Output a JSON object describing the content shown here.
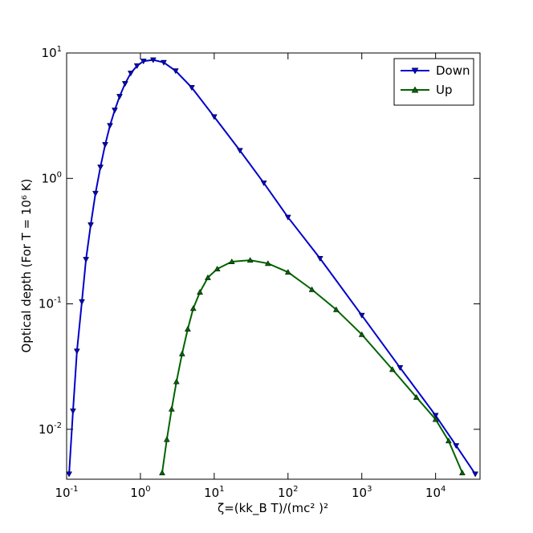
{
  "chart_data": {
    "type": "line",
    "x_label": "ζ=(kk_B T)/(mc² )²",
    "y_label": "Optical depth (For T = 10⁶ K)",
    "xscale": "log",
    "yscale": "log",
    "xlim": [
      0.1,
      40000
    ],
    "ylim": [
      0.004,
      10
    ],
    "xticks": [
      {
        "value": 0.1,
        "label": "10",
        "exponent": "-1"
      },
      {
        "value": 1,
        "label": "10",
        "exponent": "0"
      },
      {
        "value": 10,
        "label": "10",
        "exponent": "1"
      },
      {
        "value": 100,
        "label": "10",
        "exponent": "2"
      },
      {
        "value": 1000,
        "label": "10",
        "exponent": "3"
      },
      {
        "value": 10000,
        "label": "10",
        "exponent": "4"
      }
    ],
    "yticks": [
      {
        "value": 0.01,
        "label": "10",
        "exponent": "-2"
      },
      {
        "value": 0.1,
        "label": "10",
        "exponent": "-1"
      },
      {
        "value": 1,
        "label": "10",
        "exponent": "0"
      },
      {
        "value": 10,
        "label": "10",
        "exponent": "1"
      }
    ],
    "legend": "upper right",
    "series": [
      {
        "name": "Down",
        "color": "#0000cc",
        "marker": "v",
        "x": [
          0.108,
          0.122,
          0.138,
          0.161,
          0.183,
          0.212,
          0.246,
          0.287,
          0.333,
          0.387,
          0.449,
          0.522,
          0.62,
          0.74,
          0.9,
          1.1,
          1.49,
          2.07,
          3.0,
          4.96,
          10,
          22.3,
          47,
          100,
          272,
          1000,
          3300,
          10000,
          19000,
          34500
        ],
        "values": [
          0.0044,
          0.014,
          0.042,
          0.104,
          0.226,
          0.426,
          0.76,
          1.23,
          1.86,
          2.64,
          3.5,
          4.5,
          5.7,
          6.9,
          7.9,
          8.6,
          8.8,
          8.4,
          7.2,
          5.3,
          3.1,
          1.67,
          0.92,
          0.49,
          0.23,
          0.081,
          0.031,
          0.0129,
          0.0074,
          0.0044
        ]
      },
      {
        "name": "Up",
        "color": "#006400",
        "marker": "^",
        "x": [
          1.97,
          2.28,
          2.65,
          3.08,
          3.67,
          4.38,
          5.2,
          6.4,
          8.2,
          11,
          17.3,
          30.7,
          53.5,
          100,
          211,
          450,
          1000,
          2600,
          5500,
          10000,
          15000,
          23000
        ],
        "values": [
          0.0045,
          0.0083,
          0.0145,
          0.024,
          0.04,
          0.063,
          0.092,
          0.124,
          0.162,
          0.19,
          0.217,
          0.223,
          0.21,
          0.179,
          0.13,
          0.09,
          0.057,
          0.03,
          0.018,
          0.012,
          0.0081,
          0.0045
        ]
      }
    ]
  }
}
